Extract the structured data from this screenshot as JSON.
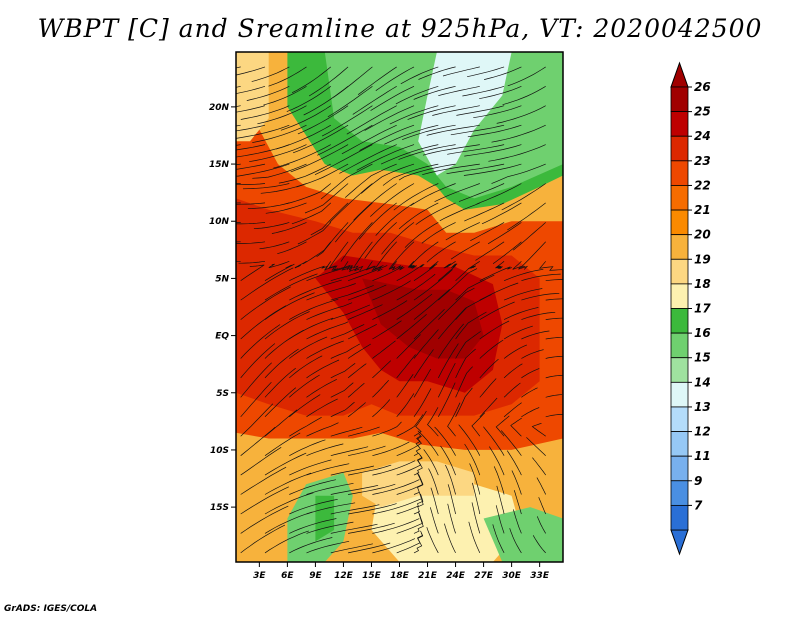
{
  "chart_data": {
    "type": "heatmap",
    "title": "WBPT [C] and Sreamline at 925hPa, VT: 2020042500",
    "credit": "GrADS: IGES/COLA",
    "x_ticks": [
      "3E",
      "6E",
      "9E",
      "12E",
      "15E",
      "18E",
      "21E",
      "24E",
      "27E",
      "30E",
      "33E"
    ],
    "x_values": [
      3,
      6,
      9,
      12,
      15,
      18,
      21,
      24,
      27,
      30,
      33
    ],
    "y_ticks": [
      "20N",
      "15N",
      "10N",
      "5N",
      "EQ",
      "5S",
      "10S",
      "15S"
    ],
    "y_values": [
      20,
      15,
      10,
      5,
      0,
      -5,
      -10,
      -15
    ],
    "xlim": [
      0.5,
      35.5
    ],
    "ylim": [
      -19.8,
      24.8
    ],
    "colorbar": {
      "levels": [
        "26",
        "25",
        "24",
        "23",
        "22",
        "21",
        "20",
        "19",
        "18",
        "17",
        "16",
        "15",
        "14",
        "13",
        "12",
        "11",
        "9",
        "7"
      ],
      "colors": [
        "#a00000",
        "#be0000",
        "#dc2800",
        "#ee4800",
        "#f66c00",
        "#fa8a00",
        "#f7b23c",
        "#fcd782",
        "#fdf1b0",
        "#3cb93c",
        "#6fd06f",
        "#9fe29f",
        "#dff7f7",
        "#b4dcfa",
        "#96c8f5",
        "#78b0ee",
        "#4a8fe2",
        "#2a6fd6"
      ],
      "top_arrow": "#a00000",
      "bottom_arrow": "#2a6fd6"
    },
    "regions": [
      {
        "color": "#f7b23c",
        "pts": [
          [
            0.5,
            24.8
          ],
          [
            4,
            24.8
          ],
          [
            5,
            20
          ],
          [
            8,
            17
          ],
          [
            10,
            14
          ],
          [
            13,
            13
          ],
          [
            16,
            13.5
          ],
          [
            20,
            13.5
          ],
          [
            22,
            12.5
          ],
          [
            23,
            11
          ],
          [
            25,
            10
          ],
          [
            28,
            11
          ],
          [
            33,
            12.5
          ],
          [
            35.5,
            13
          ],
          [
            35.5,
            -12
          ],
          [
            30,
            -12.5
          ],
          [
            26,
            -12.5
          ],
          [
            24,
            -13
          ],
          [
            20,
            -13
          ],
          [
            17,
            -13
          ],
          [
            14,
            -11
          ],
          [
            12,
            -10
          ],
          [
            8,
            -10
          ],
          [
            4,
            -10
          ],
          [
            0.5,
            -10.5
          ]
        ]
      },
      {
        "color": "#ee4800",
        "pts": [
          [
            0.5,
            21
          ],
          [
            3,
            18
          ],
          [
            5,
            15
          ],
          [
            8,
            13
          ],
          [
            12,
            12
          ],
          [
            17,
            11.5
          ],
          [
            21,
            11
          ],
          [
            23,
            9
          ],
          [
            26,
            9
          ],
          [
            30,
            10
          ],
          [
            35.5,
            10
          ],
          [
            35.5,
            -9
          ],
          [
            30,
            -10
          ],
          [
            25,
            -10
          ],
          [
            20,
            -9.5
          ],
          [
            16,
            -8.5
          ],
          [
            13,
            -9
          ],
          [
            9,
            -9
          ],
          [
            4,
            -9
          ],
          [
            0.5,
            -8.5
          ]
        ]
      },
      {
        "color": "#dc2800",
        "pts": [
          [
            0.5,
            12
          ],
          [
            4,
            11
          ],
          [
            9,
            10
          ],
          [
            13,
            9
          ],
          [
            17,
            9
          ],
          [
            21,
            8
          ],
          [
            26,
            7
          ],
          [
            30,
            7
          ],
          [
            33,
            5
          ],
          [
            33,
            -4
          ],
          [
            30,
            -6
          ],
          [
            26,
            -7
          ],
          [
            22,
            -7
          ],
          [
            18,
            -7
          ],
          [
            15,
            -6
          ],
          [
            12,
            -7
          ],
          [
            8,
            -7
          ],
          [
            4,
            -6
          ],
          [
            0.5,
            -5
          ]
        ]
      },
      {
        "color": "#be0000",
        "pts": [
          [
            9,
            5
          ],
          [
            12,
            7
          ],
          [
            16,
            6.5
          ],
          [
            20,
            6
          ],
          [
            24,
            6
          ],
          [
            28,
            4.5
          ],
          [
            29,
            1
          ],
          [
            28,
            -3
          ],
          [
            25,
            -5
          ],
          [
            21,
            -4
          ],
          [
            18,
            -4
          ],
          [
            16,
            -3
          ],
          [
            14,
            -1
          ],
          [
            12,
            2
          ]
        ]
      },
      {
        "color": "#a00000",
        "pts": [
          [
            14,
            5
          ],
          [
            17,
            4.5
          ],
          [
            20,
            4
          ],
          [
            23,
            4
          ],
          [
            26,
            3
          ],
          [
            27,
            0
          ],
          [
            25,
            -2
          ],
          [
            22,
            -2
          ],
          [
            19,
            -1
          ],
          [
            16,
            1
          ]
        ]
      },
      {
        "color": "#3cb93c",
        "pts": [
          [
            6,
            24.8
          ],
          [
            35.5,
            24.8
          ],
          [
            35.5,
            14
          ],
          [
            33,
            13
          ],
          [
            29,
            11.5
          ],
          [
            25,
            11
          ],
          [
            23,
            12
          ],
          [
            22,
            13
          ],
          [
            20,
            14
          ],
          [
            16,
            14.5
          ],
          [
            13,
            14
          ],
          [
            10,
            15
          ],
          [
            8,
            17.5
          ],
          [
            6,
            20
          ]
        ]
      },
      {
        "color": "#6fd06f",
        "pts": [
          [
            10,
            24.8
          ],
          [
            35.5,
            24.8
          ],
          [
            35.5,
            15
          ],
          [
            30,
            13
          ],
          [
            26,
            12
          ],
          [
            23,
            13
          ],
          [
            21,
            15
          ],
          [
            18,
            16.5
          ],
          [
            14,
            17
          ],
          [
            11,
            19
          ]
        ]
      },
      {
        "color": "#dff7f7",
        "pts": [
          [
            22,
            24.8
          ],
          [
            30,
            24.8
          ],
          [
            29,
            21
          ],
          [
            26,
            18
          ],
          [
            24,
            15
          ],
          [
            22,
            14
          ],
          [
            20,
            17
          ],
          [
            21,
            21
          ]
        ]
      },
      {
        "color": "#6fd06f",
        "pts": [
          [
            8,
            -13
          ],
          [
            12,
            -12
          ],
          [
            13,
            -14
          ],
          [
            12,
            -18
          ],
          [
            10,
            -19.8
          ],
          [
            6,
            -19.8
          ],
          [
            6,
            -16
          ]
        ]
      },
      {
        "color": "#3cb93c",
        "pts": [
          [
            9,
            -14
          ],
          [
            11,
            -14
          ],
          [
            11,
            -17
          ],
          [
            9,
            -18
          ]
        ]
      },
      {
        "color": "#fdf1b0",
        "pts": [
          [
            16,
            -12
          ],
          [
            22,
            -12
          ],
          [
            26,
            -13
          ],
          [
            30,
            -14
          ],
          [
            31,
            -17
          ],
          [
            28,
            -19.8
          ],
          [
            18,
            -19.8
          ],
          [
            15,
            -17
          ]
        ]
      },
      {
        "color": "#fcd782",
        "pts": [
          [
            14,
            -12
          ],
          [
            18,
            -11
          ],
          [
            22,
            -11
          ],
          [
            26,
            -12
          ],
          [
            26,
            -14
          ],
          [
            20,
            -14
          ],
          [
            16,
            -15
          ],
          [
            14,
            -14
          ]
        ]
      },
      {
        "color": "#6fd06f",
        "pts": [
          [
            27,
            -16
          ],
          [
            32,
            -15
          ],
          [
            35.5,
            -16
          ],
          [
            35.5,
            -19.8
          ],
          [
            29,
            -19.8
          ]
        ]
      },
      {
        "color": "#fcd782",
        "pts": [
          [
            0.5,
            24.8
          ],
          [
            4,
            24.8
          ],
          [
            4,
            19
          ],
          [
            2,
            17
          ],
          [
            0.5,
            17
          ]
        ]
      }
    ]
  }
}
